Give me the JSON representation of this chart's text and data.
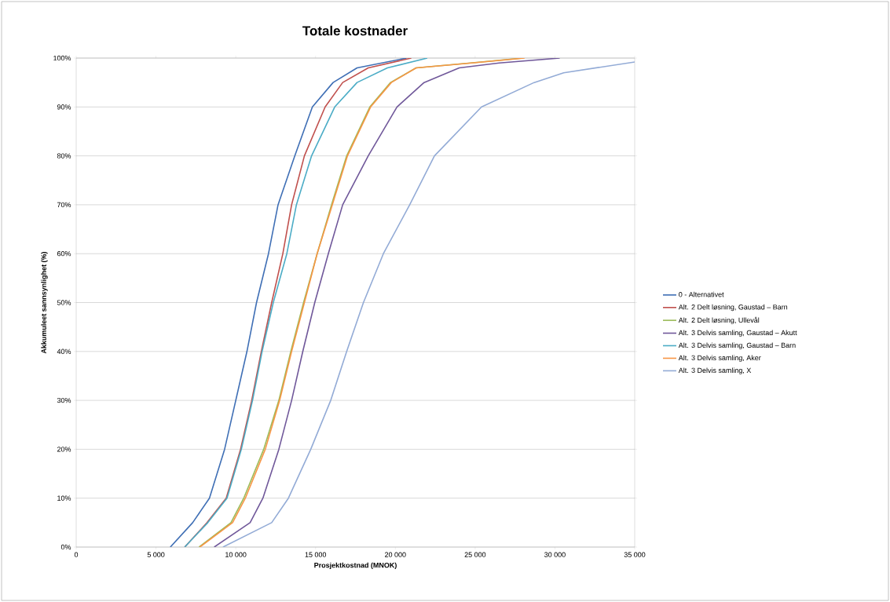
{
  "chart_data": {
    "type": "line",
    "title": "Totale kostnader",
    "xlabel": "Prosjektkostnad (MNOK)",
    "ylabel": "Akkumuleet sannsynlighet (%)",
    "xlim": [
      0,
      35000
    ],
    "ylim": [
      0,
      100
    ],
    "xticks": [
      0,
      {
        "value": 5000,
        "label": "5 000"
      },
      {
        "value": 10000,
        "label": "10 000"
      },
      {
        "value": 15000,
        "label": "15 000"
      },
      {
        "value": 20000,
        "label": "20 000"
      },
      {
        "value": 25000,
        "label": "25 000"
      },
      {
        "value": 30000,
        "label": "30 000"
      },
      {
        "value": 35000,
        "label": "35 000"
      }
    ],
    "yticks": [
      {
        "value": 0,
        "label": "0%"
      },
      {
        "value": 10,
        "label": "10%"
      },
      {
        "value": 20,
        "label": "20%"
      },
      {
        "value": 30,
        "label": "30%"
      },
      {
        "value": 40,
        "label": "40%"
      },
      {
        "value": 50,
        "label": "50%"
      },
      {
        "value": 60,
        "label": "60%"
      },
      {
        "value": 70,
        "label": "70%"
      },
      {
        "value": 80,
        "label": "80%"
      },
      {
        "value": 90,
        "label": "90%"
      },
      {
        "value": 100,
        "label": "100%"
      }
    ],
    "grid": "y",
    "legend": "right",
    "marker": "none",
    "line_style": "solid",
    "series": [
      {
        "name": "0 - Alternativet",
        "color": "#3f6fb5",
        "x": [
          5900,
          7300,
          8350,
          9300,
          10000,
          10700,
          11300,
          12050,
          12650,
          13700,
          14800,
          16100,
          17600,
          20700
        ],
        "values": [
          0,
          5,
          10,
          20,
          30,
          40,
          50,
          60,
          70,
          80,
          90,
          95,
          98,
          100
        ]
      },
      {
        "name": "Alt. 2 Delt løsning, Gaustad – Barn",
        "color": "#c0504d",
        "x": [
          6800,
          8200,
          9400,
          10300,
          11000,
          11600,
          12250,
          12950,
          13500,
          14300,
          15600,
          16700,
          18300,
          21000
        ],
        "values": [
          0,
          5,
          10,
          20,
          30,
          40,
          50,
          60,
          70,
          80,
          90,
          95,
          98,
          100
        ]
      },
      {
        "name": "Alt. 2 Delt løsning, Ullevål",
        "color": "#9bbb59",
        "x": [
          7700,
          9700,
          10500,
          11750,
          12700,
          13450,
          14250,
          15100,
          16000,
          16950,
          18400,
          19700,
          21300,
          24700,
          28000
        ],
        "values": [
          0,
          5,
          10,
          20,
          30,
          40,
          50,
          60,
          70,
          80,
          90,
          95,
          98,
          99,
          100
        ]
      },
      {
        "name": "Alt. 3 Delvis samling, Gaustad – Akutt",
        "color": "#70589a",
        "x": [
          8650,
          10900,
          11700,
          12700,
          13500,
          14200,
          14950,
          15800,
          16700,
          18300,
          20100,
          21800,
          24000,
          26500,
          30300
        ],
        "values": [
          0,
          5,
          10,
          20,
          30,
          40,
          50,
          60,
          70,
          80,
          90,
          95,
          98,
          99,
          100
        ]
      },
      {
        "name": "Alt. 3 Delvis samling, Gaustad – Barn",
        "color": "#4bacc6",
        "x": [
          6800,
          8250,
          9450,
          10350,
          11050,
          11650,
          12350,
          13200,
          13800,
          14750,
          16200,
          17600,
          19500,
          22000
        ],
        "values": [
          0,
          5,
          10,
          20,
          30,
          40,
          50,
          60,
          70,
          80,
          90,
          95,
          98,
          100
        ]
      },
      {
        "name": "Alt. 3 Delvis samling, Aker",
        "color": "#f79646",
        "x": [
          7750,
          9800,
          10600,
          11850,
          12750,
          13500,
          14300,
          15100,
          16050,
          17000,
          18450,
          19750,
          21300,
          24800,
          28100
        ],
        "values": [
          0,
          5,
          10,
          20,
          30,
          40,
          50,
          60,
          70,
          80,
          90,
          95,
          98,
          99,
          100
        ]
      },
      {
        "name": "Alt. 3 Delvis samling, X",
        "color": "#93abd6",
        "x": [
          9200,
          12250,
          13300,
          14700,
          15950,
          16950,
          18000,
          19250,
          20900,
          22450,
          25400,
          28700,
          30550,
          35000
        ],
        "values": [
          0,
          5,
          10,
          20,
          30,
          40,
          50,
          60,
          70,
          80,
          90,
          95,
          97,
          99.2
        ]
      }
    ]
  }
}
